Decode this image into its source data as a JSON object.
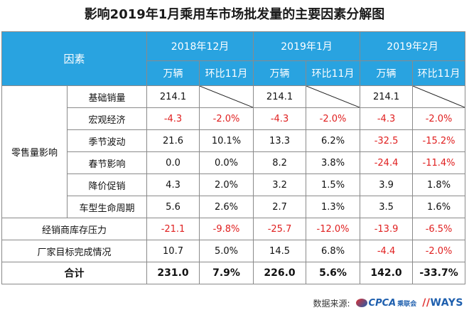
{
  "title": "影响2019年1月乘用车市场批发量的主要因素分解图",
  "header": {
    "factor": "因素",
    "periods": [
      "2018年12月",
      "2019年1月",
      "2019年2月"
    ],
    "units": "万辆",
    "mom": "环比11月"
  },
  "group_label": "零售量影响",
  "rows": [
    {
      "label": "基础销量",
      "values": [
        "214.1",
        "",
        "214.1",
        "",
        "214.1",
        ""
      ]
    },
    {
      "label": "宏观经济",
      "values": [
        "-4.3",
        "-2.0%",
        "-4.3",
        "-2.0%",
        "-4.3",
        "-2.0%"
      ]
    },
    {
      "label": "季节波动",
      "values": [
        "21.6",
        "10.1%",
        "13.3",
        "6.2%",
        "-32.5",
        "-15.2%"
      ]
    },
    {
      "label": "春节影响",
      "values": [
        "0.0",
        "0.0%",
        "8.2",
        "3.8%",
        "-24.4",
        "-11.4%"
      ]
    },
    {
      "label": "降价促销",
      "values": [
        "4.3",
        "2.0%",
        "3.2",
        "1.5%",
        "3.9",
        "1.8%"
      ]
    },
    {
      "label": "车型生命周期",
      "values": [
        "5.6",
        "2.6%",
        "2.7",
        "1.3%",
        "3.5",
        "1.6%"
      ]
    }
  ],
  "extra_rows": [
    {
      "label": "经销商库存压力",
      "values": [
        "-21.1",
        "-9.8%",
        "-25.7",
        "-12.0%",
        "-13.9",
        "-6.5%"
      ]
    },
    {
      "label": "厂家目标完成情况",
      "values": [
        "10.7",
        "5.0%",
        "14.5",
        "6.8%",
        "-4.4",
        "-2.0%"
      ]
    }
  ],
  "total": {
    "label": "合计",
    "values": [
      "231.0",
      "7.9%",
      "226.0",
      "5.6%",
      "142.0",
      "-33.7%"
    ]
  },
  "footer": {
    "source_label": "数据来源:",
    "logo1": "CPCA",
    "logo1_sub": "乘联会",
    "logo2": "WAYS"
  },
  "colors": {
    "header_bg": "#29a3e0",
    "negative": "#e02020"
  }
}
